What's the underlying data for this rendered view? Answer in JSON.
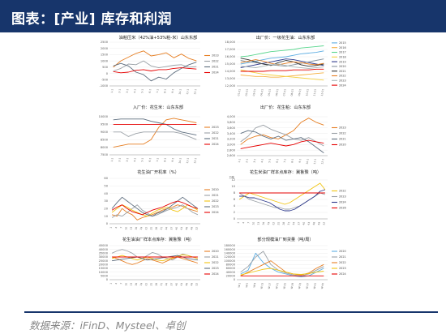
{
  "header": {
    "title": "图表：[产业] 库存和利润"
  },
  "footer": {
    "source": "数据来源：iFinD、Mysteel、卓创"
  },
  "colors": {
    "banner": "#17356b",
    "y2016": "#e74c3c",
    "y2018": "#f1c40f",
    "y2019": "#2e3a8c",
    "y2020": "#2e3a8c",
    "y2021": "#9aa0a6",
    "y2022": "#e67e22",
    "y2023": "#f39c12",
    "y2024": "#e60000"
  },
  "chart_data": [
    {
      "type": "line",
      "title": "油粕压米（42%油+53%粕-米）山东东部",
      "x": [
        "1-1",
        "2-1",
        "3-1",
        "4-1",
        "5-1",
        "6-1",
        "7-1",
        "8-1",
        "9-1",
        "10-1",
        "11-1",
        "12-1"
      ],
      "yticks": [
        "2500",
        "2000",
        "1500",
        "1000",
        "500",
        "0",
        "-500",
        "-1000"
      ],
      "ylim": [
        -1000,
        2500
      ],
      "series": [
        {
          "name": "2023",
          "color": "#e67e22",
          "values": [
            500,
            1000,
            1300,
            1600,
            1800,
            1400,
            1500,
            1650,
            1250,
            1550,
            1200,
            1000
          ]
        },
        {
          "name": "2022",
          "color": "#9aa0a6",
          "values": [
            200,
            400,
            750,
            700,
            1000,
            600,
            450,
            550,
            650,
            700,
            500,
            550
          ]
        },
        {
          "name": "2021",
          "color": "#5d6d7e",
          "values": [
            600,
            800,
            600,
            100,
            -100,
            -600,
            -300,
            -450,
            50,
            400,
            700,
            900
          ]
        },
        {
          "name": "2024",
          "color": "#e60000",
          "values": [
            150,
            50,
            100,
            250,
            300,
            200,
            300,
            300,
            400,
            450,
            400,
            350
          ]
        }
      ]
    },
    {
      "type": "line",
      "title": "出厂价：一级花生油：山东东部",
      "x": [
        "01-01",
        "02-01",
        "03-01",
        "04-01",
        "05-01",
        "06-01",
        "07-01",
        "08-01",
        "09-01",
        "10-01",
        "11-01",
        "12-01"
      ],
      "yticks": [
        "18,000",
        "17,000",
        "16,000",
        "15,000",
        "14,000",
        "13,000",
        "12,000"
      ],
      "ylim": [
        12000,
        18000
      ],
      "series": [
        {
          "name": "2015",
          "color": "#5dade2",
          "values": [
            15000,
            15200,
            15400,
            15600,
            15800,
            15900,
            16000,
            16200,
            16400,
            16500,
            16600,
            16800
          ]
        },
        {
          "name": "2016",
          "color": "#f5b041",
          "values": [
            13500,
            13400,
            13300,
            13300,
            13200,
            13200,
            13300,
            13400,
            13500,
            13600,
            13700,
            13800
          ]
        },
        {
          "name": "2017",
          "color": "#58d68d",
          "values": [
            16000,
            16100,
            16300,
            16500,
            16700,
            16800,
            16900,
            17000,
            17200,
            17300,
            17400,
            17500
          ]
        },
        {
          "name": "2018",
          "color": "#f4d03f",
          "values": [
            14200,
            14000,
            13800,
            13600,
            13500,
            13400,
            13300,
            13200,
            13100,
            13000,
            12900,
            12800
          ]
        },
        {
          "name": "2019",
          "color": "#2e3a8c",
          "values": [
            14500,
            14700,
            14900,
            15100,
            15300,
            15500,
            15700,
            15600,
            15400,
            15200,
            15000,
            14800
          ]
        },
        {
          "name": "2020",
          "color": "#85929e",
          "values": [
            15500,
            15300,
            15200,
            15000,
            14900,
            14800,
            14700,
            14900,
            15100,
            15300,
            15500,
            15700
          ]
        },
        {
          "name": "2021",
          "color": "#333333",
          "values": [
            15800,
            15600,
            15300,
            15000,
            14800,
            15200,
            15500,
            15300,
            14900,
            14700,
            14800,
            15000
          ]
        },
        {
          "name": "2022",
          "color": "#e67e22",
          "values": [
            15200,
            15400,
            15600,
            15400,
            15100,
            14900,
            15100,
            15300,
            15200,
            15000,
            14900,
            15100
          ]
        },
        {
          "name": "2023",
          "color": "#aab7b8",
          "values": [
            14700,
            14600,
            14500,
            14700,
            14900,
            15000,
            14800,
            14600,
            14500,
            14400,
            14500,
            14600
          ]
        },
        {
          "name": "2024",
          "color": "#e60000",
          "values": [
            14000,
            14000,
            14000,
            14000,
            14100,
            14100,
            14100,
            14200,
            14200,
            14200,
            14300,
            14300
          ]
        }
      ]
    },
    {
      "type": "line",
      "title": "入厂价：花生米：山东东部",
      "x": [
        "1-1",
        "2-1",
        "3-1",
        "4-1",
        "5-1",
        "6-1",
        "7-1",
        "8-1",
        "9-1",
        "10-1",
        "11-1",
        "12-1"
      ],
      "yticks": [
        "10000",
        "9500",
        "9000",
        "8500",
        "8000",
        "7500"
      ],
      "ylim": [
        7500,
        10000
      ],
      "series": [
        {
          "name": "2023",
          "color": "#e67e22",
          "values": [
            8000,
            8100,
            8200,
            8200,
            8200,
            8500,
            9300,
            9800,
            9900,
            9800,
            9700,
            9600
          ]
        },
        {
          "name": "2022",
          "color": "#9aa0a6",
          "values": [
            9000,
            9000,
            8700,
            8900,
            9000,
            9000,
            9000,
            9000,
            9000,
            8900,
            8700,
            8500
          ]
        },
        {
          "name": "2021",
          "color": "#5d6d7e",
          "values": [
            9800,
            9850,
            9850,
            9850,
            9850,
            9700,
            9600,
            9500,
            9200,
            9000,
            8900,
            8800
          ]
        },
        {
          "name": "2024",
          "color": "#e60000",
          "values": [
            9500,
            9500,
            9500,
            9500,
            9500,
            9500,
            9500,
            9500,
            9500,
            9500,
            9500,
            9500
          ]
        }
      ]
    },
    {
      "type": "line",
      "title": "出厂价：花生粕：山东东部",
      "x": [
        "1-1",
        "2-1",
        "3-1",
        "4-1",
        "5-1",
        "6-1",
        "7-1",
        "8-1",
        "9-1",
        "10-1",
        "11-1",
        "12-1"
      ],
      "yticks": [
        "4,000",
        "3,800",
        "3,600",
        "3,400",
        "3,200",
        "3,000",
        "2,800",
        "2,600"
      ],
      "ylim": [
        2600,
        4000
      ],
      "series": [
        {
          "name": "2023",
          "color": "#e67e22",
          "values": [
            3000,
            3200,
            3300,
            3350,
            3250,
            3200,
            3350,
            3500,
            3800,
            3950,
            3800,
            3700
          ]
        },
        {
          "name": "2022",
          "color": "#9aa0a6",
          "values": [
            3100,
            3300,
            3600,
            3700,
            3550,
            3450,
            3350,
            3200,
            3150,
            3250,
            3100,
            2950
          ]
        },
        {
          "name": "2021",
          "color": "#5d6d7e",
          "values": [
            3400,
            3500,
            3450,
            3300,
            3200,
            3300,
            3150,
            3200,
            3250,
            3100,
            2900,
            2700
          ]
        },
        {
          "name": "2020",
          "color": "#e60000",
          "values": [
            2850,
            2900,
            2950,
            3000,
            3050,
            3000,
            2950,
            3000,
            3100,
            3150,
            3100,
            3050
          ]
        }
      ]
    },
    {
      "type": "line",
      "title": "花生油厂开机率（%）",
      "x": [
        "1",
        "4",
        "7",
        "10",
        "13",
        "16",
        "19",
        "22",
        "25",
        "28",
        "31",
        "34",
        "37",
        "40",
        "43",
        "46",
        "49",
        "52"
      ],
      "yticks": [
        "60",
        "50",
        "40",
        "30",
        "20",
        "10",
        "0"
      ],
      "ylim": [
        0,
        60
      ],
      "series": [
        {
          "name": "2020",
          "color": "#e67e22",
          "values": [
            12,
            10,
            20,
            15,
            12,
            5,
            8,
            10,
            12,
            15,
            18,
            20,
            22,
            25,
            23,
            20,
            18,
            16
          ]
        },
        {
          "name": "2021",
          "color": "#9aa0a6",
          "values": [
            8,
            12,
            10,
            15,
            20,
            25,
            18,
            14,
            10,
            12,
            15,
            18,
            20,
            22,
            25,
            20,
            15,
            12
          ]
        },
        {
          "name": "2022",
          "color": "#f1c40f",
          "values": [
            15,
            20,
            25,
            22,
            18,
            15,
            12,
            10,
            14,
            18,
            20,
            22,
            18,
            16,
            20,
            25,
            22,
            18
          ]
        },
        {
          "name": "2023",
          "color": "#5d6d7e",
          "values": [
            20,
            28,
            35,
            30,
            25,
            20,
            15,
            12,
            10,
            14,
            16,
            20,
            25,
            30,
            35,
            30,
            25,
            20
          ]
        },
        {
          "name": "2024",
          "color": "#e60000",
          "values": [
            18,
            22,
            25,
            20,
            16,
            14,
            12,
            15,
            18,
            20,
            22,
            25,
            28,
            30,
            28,
            25,
            22,
            20
          ]
        }
      ]
    },
    {
      "type": "line",
      "title": "花生米油厂样本点库存：冀鲁豫（吨）",
      "ylabel": "万吨",
      "x": [
        "1",
        "4",
        "7",
        "10",
        "13",
        "16",
        "19",
        "22",
        "25",
        "28",
        "31",
        "34",
        "37",
        "40",
        "43",
        "46",
        "49",
        "52"
      ],
      "yticks": [
        "12",
        "10",
        "8",
        "6",
        "4",
        "2",
        "0"
      ],
      "ylim": [
        0,
        12
      ],
      "series": [
        {
          "name": "2022",
          "color": "#f1c40f",
          "values": [
            6,
            7,
            8,
            7.5,
            7,
            6.5,
            6,
            5.5,
            5,
            4.5,
            5,
            6,
            7,
            8,
            9,
            10,
            11,
            9
          ]
        },
        {
          "name": "2023",
          "color": "#9aa0a6",
          "values": [
            8,
            7,
            6,
            5.5,
            5,
            4.5,
            4,
            3.5,
            3.5,
            3,
            3,
            3.5,
            4,
            5,
            6,
            7,
            8,
            7.5
          ]
        },
        {
          "name": "2024",
          "color": "#2e3a8c",
          "values": [
            7,
            7,
            6.5,
            6.5,
            6,
            5.5,
            5,
            4,
            3,
            2.5,
            2.5,
            3,
            4,
            5,
            6,
            7,
            8.5,
            9
          ]
        },
        {
          "name": "2026",
          "color": "#e60000",
          "values": [
            8,
            8,
            8,
            8,
            8,
            8,
            8,
            8,
            8,
            8,
            8,
            8,
            8,
            8,
            8,
            8,
            8,
            8
          ]
        }
      ]
    },
    {
      "type": "line",
      "title": "花生油油厂样本点库存：冀鲁豫（吨）",
      "x": [
        "1",
        "4",
        "7",
        "10",
        "13",
        "16",
        "19",
        "22",
        "25",
        "28",
        "31",
        "34",
        "37",
        "40",
        "43",
        "46",
        "49",
        "52"
      ],
      "yticks": [
        "45000",
        "40000",
        "35000",
        "30000",
        "25000",
        "20000",
        "15000",
        "10000",
        "5000",
        "0"
      ],
      "ylim": [
        0,
        45000
      ],
      "series": [
        {
          "name": "2020",
          "color": "#e67e22",
          "values": [
            30000,
            28000,
            25000,
            22000,
            20000,
            22000,
            25000,
            28000,
            26000,
            24000,
            22000,
            25000,
            28000,
            30000,
            28000,
            26000,
            24000,
            22000
          ]
        },
        {
          "name": "2021",
          "color": "#9aa0a6",
          "values": [
            35000,
            38000,
            40000,
            38000,
            35000,
            30000,
            28000,
            32000,
            36000,
            34000,
            30000,
            28000,
            26000,
            30000,
            34000,
            32000,
            30000,
            28000
          ]
        },
        {
          "name": "2022",
          "color": "#f1c40f",
          "values": [
            28000,
            30000,
            32000,
            30000,
            28000,
            26000,
            28000,
            30000,
            28000,
            26000,
            25000,
            27000,
            29000,
            31000,
            33000,
            32000,
            30000,
            28000
          ]
        },
        {
          "name": "2023",
          "color": "#5d6d7e",
          "values": [
            25000,
            26000,
            27000,
            28000,
            29000,
            30000,
            28000,
            26000,
            27000,
            28000,
            29000,
            30000,
            31000,
            32000,
            30000,
            28000,
            27000,
            26000
          ]
        },
        {
          "name": "2024",
          "color": "#e60000",
          "values": [
            30000,
            30000,
            30000,
            30000,
            30000,
            30000,
            30000,
            30000,
            30000,
            30000,
            30000,
            30000,
            30000,
            30000,
            30000,
            30000,
            30000,
            30000
          ]
        }
      ]
    },
    {
      "type": "line",
      "title": "部分规模油厂到货量（吨/周）",
      "x": [
        "W-1",
        "W-5",
        "W-9",
        "W-13",
        "W-17",
        "W-21",
        "W-25",
        "W-29",
        "W-33",
        "W-37",
        "W-41",
        "W-45"
      ],
      "yticks": [
        "180000",
        "160000",
        "140000",
        "120000",
        "100000",
        "80000",
        "60000",
        "40000",
        "20000",
        "0"
      ],
      "ylim": [
        0,
        180000
      ],
      "series": [
        {
          "name": "2020",
          "color": "#5dade2",
          "values": [
            30000,
            50000,
            140000,
            90000,
            60000,
            40000,
            30000,
            20000,
            15000,
            20000,
            40000,
            60000
          ]
        },
        {
          "name": "2021",
          "color": "#9aa0a6",
          "values": [
            40000,
            70000,
            120000,
            150000,
            80000,
            50000,
            35000,
            25000,
            20000,
            30000,
            50000,
            70000
          ]
        },
        {
          "name": "2022",
          "color": "#e67e22",
          "values": [
            20000,
            40000,
            60000,
            80000,
            100000,
            70000,
            40000,
            30000,
            25000,
            35000,
            60000,
            80000
          ]
        },
        {
          "name": "2023",
          "color": "#f1c40f",
          "values": [
            25000,
            35000,
            45000,
            55000,
            60000,
            50000,
            40000,
            30000,
            28000,
            32000,
            40000,
            45000
          ]
        },
        {
          "name": "2024",
          "color": "#e60000",
          "values": [
            20000,
            20000,
            20000,
            20000,
            20000,
            20000,
            20000,
            20000,
            20000,
            20000,
            20000,
            20000
          ]
        }
      ]
    }
  ]
}
